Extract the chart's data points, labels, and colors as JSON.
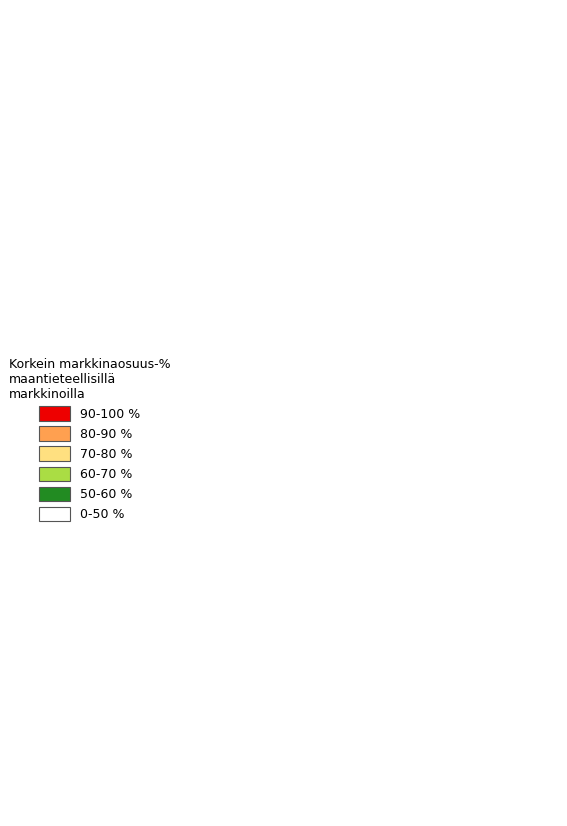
{
  "legend_title": "Korkein markkinaosuus-%\nmaantieteellisillä\nmarkkinoilla",
  "legend_entries": [
    {
      "label": "90-100 %",
      "color": "#EE0000"
    },
    {
      "label": "80-90 %",
      "color": "#FFA050"
    },
    {
      "label": "70-80 %",
      "color": "#FFE080"
    },
    {
      "label": "60-70 %",
      "color": "#AADD44"
    },
    {
      "label": "50-60 %",
      "color": "#228B22"
    },
    {
      "label": "0-50 %",
      "color": "#FFFFFF"
    }
  ],
  "background_color": "#FFFFFF",
  "border_color": "#333333",
  "border_width": 0.3,
  "figsize": [
    5.67,
    8.26
  ],
  "dpi": 100,
  "municipality_colors": {
    "Enontekiö": 0,
    "Inari": 0,
    "Utsjoki": 0,
    "Sodankylä": 0,
    "Kemijärvi": 0,
    "Pelkosenniemi": 0,
    "Savukoski": 0,
    "Salla": 0,
    "Kittilä": 0,
    "Muonio": 0,
    "Kolari": 0,
    "Pello": 0,
    "Rovaniemi": 0,
    "Ranua": 0,
    "Posio": 0,
    "Kuusamo": 0,
    "Taivalkoski": 0,
    "Suomussalmi": 0,
    "Hyrynsalmi": 0,
    "Ristijärvi": 0,
    "Kuhmo": 0,
    "Sotkamo": 0,
    "Paltamo": 0,
    "Kajaani": 0,
    "Vaala": 0,
    "Tervola": 0,
    "Ylitornio": 0,
    "Tornio": 0,
    "Ii": 0,
    "Puolanka": 0,
    "Pudasjärvi": 0,
    "Simon": 0,
    "Keminmaa": 0,
    "Kemi": 0,
    "Simo": 0,
    "Oulu": 3,
    "Kempele": 3,
    "Liminka": 3,
    "Tyrnävä": 3,
    "Muhos": 3,
    "Utajärvi": 3,
    "Haukipudas": 3,
    "Oulunsalo": 3,
    "Raahe": 1,
    "Siikajoki": 1,
    "Pyhäjoki": 1,
    "Kalajoki": 1,
    "Ylivieska": 1,
    "Alavieska": 1,
    "Oulainen": 1,
    "Haapavesi": 1,
    "Siikalatva": 1,
    "Kärsämäki": 1,
    "Pyhäntä": 1,
    "Merijärvi": 1,
    "Nivala": 1,
    "Haapajärvi": 1,
    "Pyhäjärvi": 1,
    "Reisjärvi": 1,
    "Vihanti": 1,
    "Lumijoki": 1,
    "Hailuoto": 1,
    "Kokkola": 1,
    "Kannus": 1,
    "Toholampi": 1,
    "Lestijärvi": 1,
    "Halsua": 1,
    "Kaustinen": 1,
    "Veteli": 1,
    "Perho": 1,
    "Evijärvi": 1,
    "Lappajärvi": 1,
    "Alajärvi": 1,
    "Vimpeli": 1,
    "Soini": 1,
    "Karijoki": 1,
    "Isojoki": 1,
    "Pietarsaari": 1,
    "Pedersöre": 1,
    "Uusikaarlepyy": 1,
    "Vaasa": 4,
    "Mustasaari": 1,
    "Laihia": 1,
    "Isokyrö": 1,
    "Vöyri": 1,
    "Maalahti": 1,
    "Korsnäs": 1,
    "Närpiö": 1,
    "Kristiinankaupunki": 1,
    "Kaskinen": 1,
    "Ilmajoki": 1,
    "Seinäjoki": 4,
    "Lapua": 4,
    "Kauhava": 1,
    "Kuortane": 1,
    "Alavus": 2,
    "Töysä": 2,
    "Ähtäri": 2,
    "Virrat": 2,
    "Keuruu": 2,
    "Multia": 2,
    "Jyväskylä": 4,
    "Jämsä": 2,
    "Kuhmoinen": 2,
    "Luhanka": 2,
    "Toivakka": 2,
    "Joutsa": 2,
    "Muurame": 3,
    "Petäjävesi": 2,
    "Uurainen": 3,
    "Karstula": 2,
    "Kivijärvi": 2,
    "Kyyjärvi": 2,
    "Pihtipudas": 2,
    "Viitasaari": 2,
    "Saarijärvi": 2,
    "Kannonkoski": 2,
    "Konnevesi": 2,
    "Äänekoski": 2,
    "Laukaa": 3,
    "Hankasalmi": 2,
    "Suolahti": 2,
    "Kuopio": 3,
    "Siilinjärvi": 3,
    "Lapinlahti": 2,
    "Iisalmi": 2,
    "Kiuruvesi": 2,
    "Vieremä": 2,
    "Sonkajärvi": 2,
    "Rautavaara": 2,
    "Nilsiä": 2,
    "Kaavi": 2,
    "Juankoski": 2,
    "Tuusniemi": 2,
    "Rautalampi": 2,
    "Suonenjoki": 2,
    "Vesanto": 2,
    "Tervo": 2,
    "Pielavesi": 2,
    "Maaninka": 2,
    "Joensuu": 3,
    "Kontiolahti": 3,
    "Liperi": 3,
    "Outokumpu": 2,
    "Polvijärvi": 2,
    "Juuka": 2,
    "Nurmes": 2,
    "Valtimo": 2,
    "Rääkkylä": 2,
    "Kitee": 2,
    "Tohmajärvi": 2,
    "Kesälahti": 2,
    "Ilomantsi": 2,
    "Lieksa": 2,
    "Heinävesi": 2,
    "Joroinen": 2,
    "Pieksämäki": 2,
    "Juva": 2,
    "Mikkeli": 4,
    "Kangasniemi": 2,
    "Hirvensalmi": 2,
    "Mäntyharju": 2,
    "Pertunmaa": 2,
    "Puumala": 2,
    "Savonlinna": 2,
    "Enonkoski": 2,
    "Rantasalmi": 2,
    "Sulkava": 2,
    "Kerimäki": 2,
    "Punkaharju": 2,
    "Lappeenranta": 3,
    "Lemi": 3,
    "Luumäki": 2,
    "Savitaipale": 2,
    "Taipalsaari": 3,
    "Suomenniemi": 2,
    "Ruokolahti": 2,
    "Rautjärvi": 2,
    "Parikkala": 2,
    "Imatra": 4,
    "Kouvola": 3,
    "Iitti": 3,
    "Pyhtää": 3,
    "Kotka": 4,
    "Hamina": 3,
    "Miehikkälä": 2,
    "Virolahti": 2,
    "Lahti": 4,
    "Hollola": 3,
    "Nastola": 3,
    "Heinola": 3,
    "Sysmä": 2,
    "Asikkala": 3,
    "Padasjoki": 2,
    "Hämeenlinna": 3,
    "Janakkala": 3,
    "Hattula": 3,
    "Hausjärvi": 3,
    "Loppi": 3,
    "Riihimäki": 3,
    "Forssa": 3,
    "Humppila": 3,
    "Jokioinen": 3,
    "Ypäjä": 3,
    "Tammela": 3,
    "Somero": 2,
    "Urjala": 2,
    "Akaa": 3,
    "Valkeakoski": 3,
    "Kangasala": 3,
    "Tampere": 4,
    "Nokia": 3,
    "Pirkkala": 4,
    "Ylöjärvi": 3,
    "Lempäälä": 3,
    "Vesilahti": 3,
    "Sastamala": 2,
    "Punkalaidun": 2,
    "Pori": 4,
    "Harjavalta": 3,
    "Kokemäki": 2,
    "Huittinen": 2,
    "Säkylä": 2,
    "Eura": 2,
    "Eurajoki": 2,
    "Rauma": 4,
    "Laitila": 2,
    "Uusikaupunki": 3,
    "Turku": 4,
    "Kaarina": 4,
    "Lieto": 3,
    "Paimio": 3,
    "Sauvo": 3,
    "Raisio": 4,
    "Naantali": 4,
    "Masku": 3,
    "Nousiainen": 3,
    "Mynämäki": 2,
    "Vehmaa": 2,
    "Taivassalo": 2,
    "Kustavi": 2,
    "Parainen": 3,
    "Kemiönsaari": 2,
    "Salo": 3,
    "Lohja": 4,
    "Vihti": 3,
    "Karkkila": 3,
    "Espoo": 5,
    "Helsinki": 5,
    "Vantaa": 5,
    "Kauniainen": 5,
    "Kerava": 4,
    "Järvenpää": 4,
    "Hyvinkää": 4,
    "Nurmijärvi": 3,
    "Tuusula": 3,
    "Sipoo": 3,
    "Pornainen": 3,
    "Mäntsälä": 3,
    "Porvoo": 3,
    "Askola": 3,
    "Pukkila": 3,
    "Lapinjärvi": 2,
    "Loviisa": 3,
    "Myrskylä": 2,
    "Orimattila": 3,
    "Hartola": 2,
    "Raasepori": 3,
    "Hanko": 3,
    "Inkoo": 3,
    "Kirkkonummi": 3,
    "Siuntio": 3,
    "Hämeenkyrö": 2,
    "Ikaalinen": 2,
    "Parkano": 2,
    "Kihniö": 2,
    "Mänttä-Vilppula": 2,
    "Ruovesi": 2,
    "Orivesi": 3,
    "Jämsänkoski": 2
  }
}
